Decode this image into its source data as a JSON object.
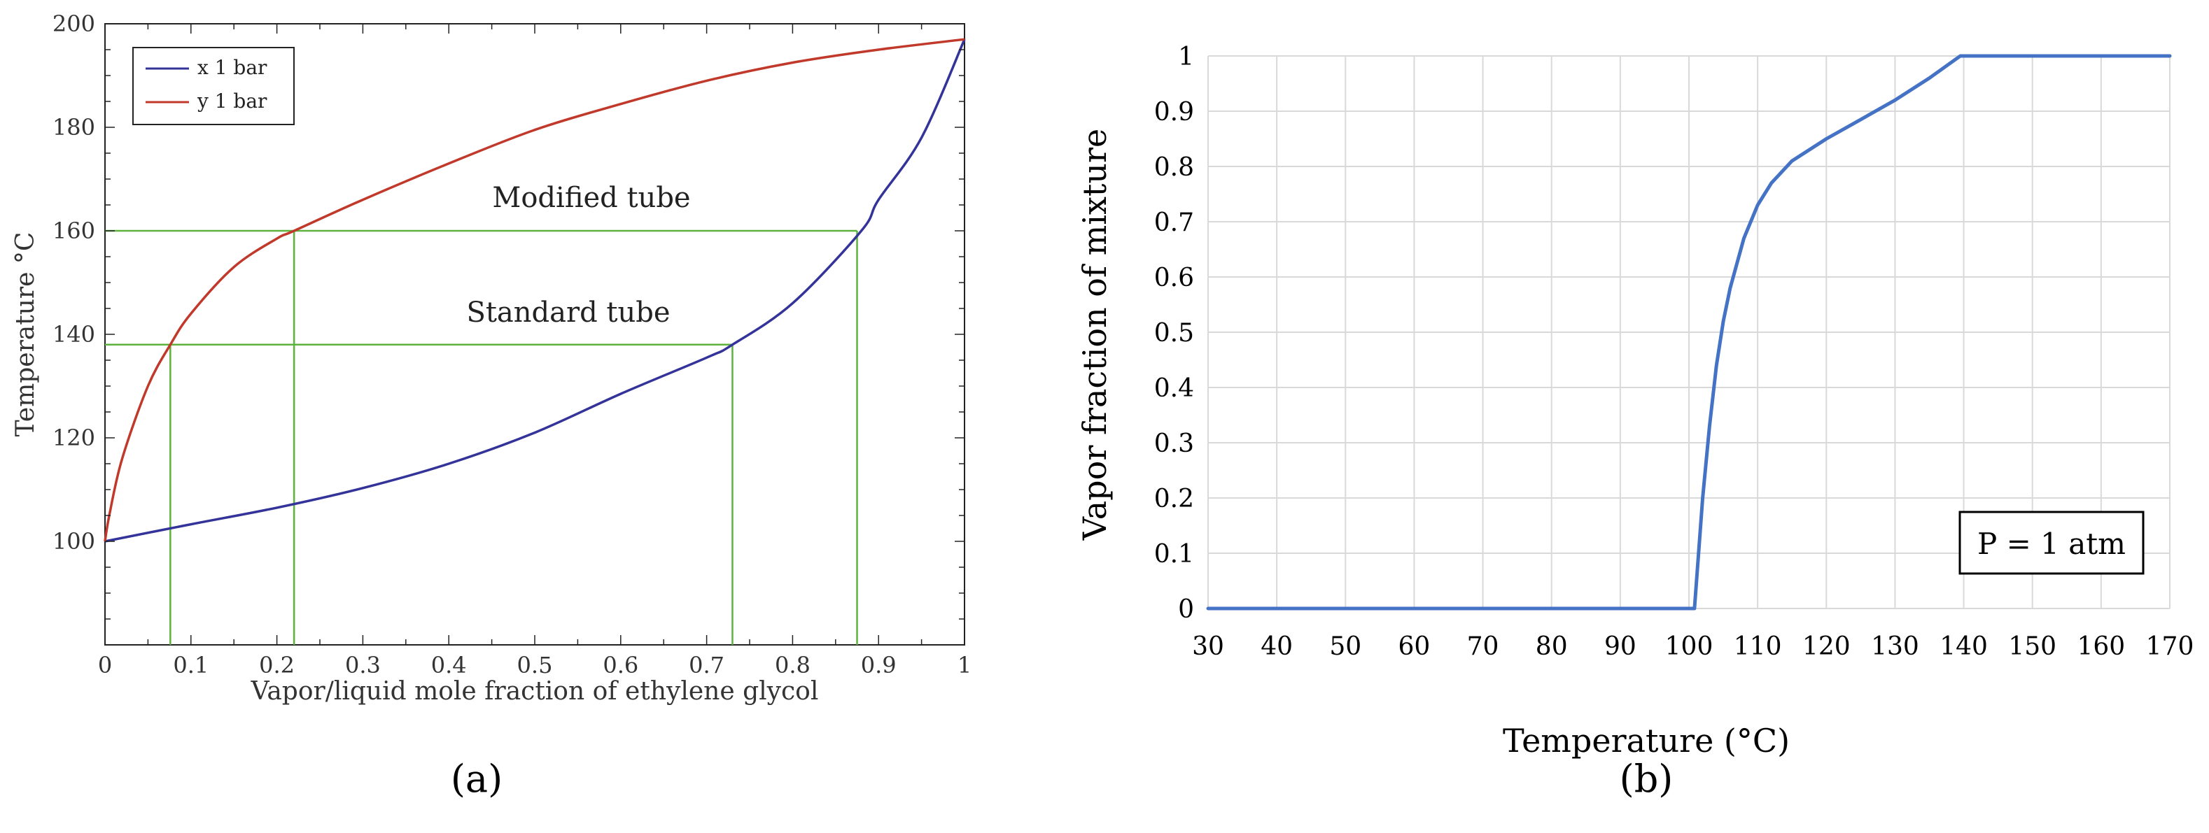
{
  "colors": {
    "x_curve": "#333399",
    "y_curve": "#c0392b",
    "guide": "#5db33e",
    "vapor_curve": "#4472c4",
    "grid": "#d9d9d9",
    "axis": "#000000"
  },
  "chart_data": [
    {
      "panel_label": "(a)",
      "type": "line",
      "xlabel": "Vapor/liquid mole fraction of ethylene glycol",
      "ylabel": "Temperature °C",
      "xlim": [
        0,
        1
      ],
      "ylim": [
        80,
        200
      ],
      "x_ticks": [
        "0",
        "0.1",
        "0.2",
        "0.3",
        "0.4",
        "0.5",
        "0.6",
        "0.7",
        "0.8",
        "0.9",
        "1"
      ],
      "y_ticks": [
        "100",
        "120",
        "140",
        "160",
        "180",
        "200"
      ],
      "legend": {
        "position": "top-left",
        "entries": [
          "x 1 bar",
          "y 1 bar"
        ]
      },
      "series": [
        {
          "name": "x 1 bar",
          "x": [
            0,
            0.1,
            0.2,
            0.3,
            0.4,
            0.5,
            0.6,
            0.7,
            0.73,
            0.8,
            0.88,
            0.9,
            0.95,
            1.0
          ],
          "y": [
            100,
            103.3,
            106.5,
            110.3,
            115,
            121,
            128.5,
            135.5,
            138,
            146,
            160,
            166,
            178,
            197
          ]
        },
        {
          "name": "y 1 bar",
          "x": [
            0,
            0.005,
            0.02,
            0.05,
            0.076,
            0.1,
            0.15,
            0.2,
            0.22,
            0.3,
            0.4,
            0.5,
            0.6,
            0.7,
            0.8,
            0.9,
            1.0
          ],
          "y": [
            100,
            105,
            116,
            130,
            138,
            144,
            153,
            158.5,
            160,
            166,
            173,
            179.5,
            184.5,
            189,
            192.5,
            195,
            197
          ]
        }
      ],
      "guides": [
        {
          "label": "Modified tube",
          "temperature": 160,
          "x_vapor": 0.22,
          "x_liquid": 0.875
        },
        {
          "label": "Standard tube",
          "temperature": 138,
          "x_vapor": 0.076,
          "x_liquid": 0.73
        }
      ],
      "grid": false
    },
    {
      "panel_label": "(b)",
      "type": "line",
      "xlabel": "Temperature (°C)",
      "ylabel": "Vapor fraction of mixture",
      "xlim": [
        30,
        170
      ],
      "ylim": [
        0,
        1
      ],
      "x_ticks": [
        "30",
        "40",
        "50",
        "60",
        "70",
        "80",
        "90",
        "100",
        "110",
        "120",
        "130",
        "140",
        "150",
        "160",
        "170"
      ],
      "y_ticks": [
        "0",
        "0.1",
        "0.2",
        "0.3",
        "0.4",
        "0.5",
        "0.6",
        "0.7",
        "0.8",
        "0.9",
        "1"
      ],
      "annotation": "P = 1 atm",
      "series": [
        {
          "x": [
            30,
            100.8,
            102,
            103,
            104,
            105,
            106,
            108,
            110,
            112,
            115,
            120,
            125,
            130,
            135,
            139.5,
            145,
            170
          ],
          "y": [
            0,
            0,
            0.2,
            0.33,
            0.44,
            0.52,
            0.58,
            0.67,
            0.73,
            0.77,
            0.81,
            0.85,
            0.885,
            0.92,
            0.96,
            1.0,
            1.0,
            1.0
          ]
        }
      ],
      "grid": true
    }
  ]
}
